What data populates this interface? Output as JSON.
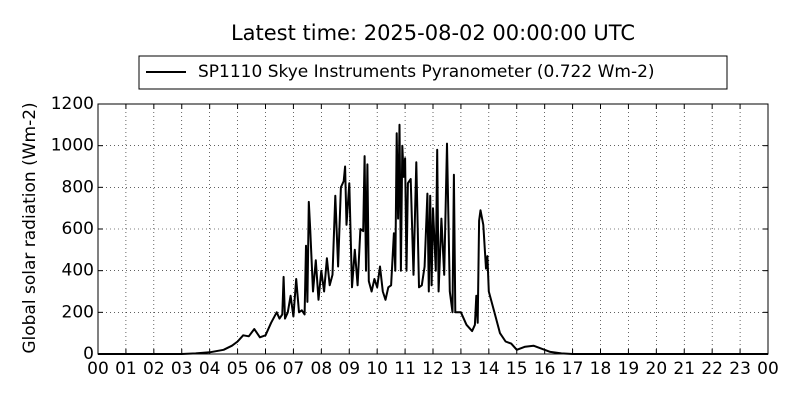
{
  "chart_data": {
    "type": "line",
    "title": "Latest time: 2025-08-02 00:00:00 UTC",
    "ylabel": "Global solar radiation (Wm-2)",
    "x": [
      0,
      3,
      3.5,
      4,
      4.5,
      4.8,
      5,
      5.2,
      5.4,
      5.6,
      5.8,
      6,
      6.2,
      6.4,
      6.5,
      6.6,
      6.65,
      6.7,
      6.8,
      6.9,
      7.0,
      7.1,
      7.2,
      7.3,
      7.4,
      7.45,
      7.5,
      7.55,
      7.6,
      7.7,
      7.8,
      7.9,
      8.0,
      8.1,
      8.2,
      8.3,
      8.4,
      8.5,
      8.6,
      8.7,
      8.8,
      8.85,
      8.9,
      9.0,
      9.1,
      9.2,
      9.3,
      9.4,
      9.5,
      9.55,
      9.6,
      9.65,
      9.7,
      9.8,
      9.9,
      10.0,
      10.1,
      10.2,
      10.3,
      10.4,
      10.5,
      10.6,
      10.65,
      10.7,
      10.75,
      10.8,
      10.85,
      10.9,
      10.95,
      11.0,
      11.05,
      11.1,
      11.2,
      11.3,
      11.4,
      11.5,
      11.6,
      11.7,
      11.8,
      11.85,
      11.9,
      11.95,
      12.0,
      12.1,
      12.15,
      12.2,
      12.3,
      12.4,
      12.5,
      12.6,
      12.7,
      12.75,
      12.8,
      13.0,
      13.2,
      13.4,
      13.5,
      13.55,
      13.6,
      13.65,
      13.7,
      13.8,
      13.9,
      13.95,
      14.0,
      14.2,
      14.4,
      14.6,
      14.8,
      15.0,
      15.3,
      15.6,
      15.9,
      16.2,
      16.6,
      17,
      24
    ],
    "series": [
      {
        "name": "SP1110 Skye Instruments Pyranometer (0.722 Wm-2)",
        "color": "#000000",
        "values": [
          0,
          0,
          3,
          8,
          20,
          40,
          60,
          90,
          85,
          120,
          80,
          90,
          150,
          200,
          170,
          190,
          370,
          170,
          200,
          280,
          180,
          360,
          200,
          210,
          190,
          520,
          250,
          730,
          600,
          300,
          450,
          260,
          400,
          300,
          460,
          330,
          380,
          760,
          420,
          800,
          830,
          900,
          620,
          820,
          320,
          500,
          330,
          600,
          590,
          950,
          400,
          910,
          350,
          300,
          360,
          320,
          420,
          300,
          260,
          320,
          330,
          580,
          400,
          1060,
          650,
          1100,
          400,
          1000,
          850,
          940,
          400,
          820,
          840,
          380,
          920,
          320,
          330,
          420,
          770,
          300,
          760,
          330,
          700,
          400,
          980,
          300,
          650,
          380,
          1010,
          300,
          200,
          860,
          200,
          200,
          140,
          110,
          140,
          280,
          150,
          640,
          690,
          620,
          410,
          470,
          300,
          200,
          100,
          60,
          50,
          20,
          35,
          40,
          25,
          10,
          3,
          0,
          0
        ]
      }
    ],
    "xlim": [
      0,
      24
    ],
    "ylim": [
      0,
      1200
    ],
    "xticks": [
      {
        "value": 0,
        "label": "00"
      },
      {
        "value": 1,
        "label": "01"
      },
      {
        "value": 2,
        "label": "02"
      },
      {
        "value": 3,
        "label": "03"
      },
      {
        "value": 4,
        "label": "04"
      },
      {
        "value": 5,
        "label": "05"
      },
      {
        "value": 6,
        "label": "06"
      },
      {
        "value": 7,
        "label": "07"
      },
      {
        "value": 8,
        "label": "08"
      },
      {
        "value": 9,
        "label": "09"
      },
      {
        "value": 10,
        "label": "10"
      },
      {
        "value": 11,
        "label": "11"
      },
      {
        "value": 12,
        "label": "12"
      },
      {
        "value": 13,
        "label": "13"
      },
      {
        "value": 14,
        "label": "14"
      },
      {
        "value": 15,
        "label": "15"
      },
      {
        "value": 16,
        "label": "16"
      },
      {
        "value": 17,
        "label": "17"
      },
      {
        "value": 18,
        "label": "18"
      },
      {
        "value": 19,
        "label": "19"
      },
      {
        "value": 20,
        "label": "20"
      },
      {
        "value": 21,
        "label": "21"
      },
      {
        "value": 22,
        "label": "22"
      },
      {
        "value": 23,
        "label": "23"
      },
      {
        "value": 24,
        "label": "00"
      }
    ],
    "yticks": [
      0,
      200,
      400,
      600,
      800,
      1000,
      1200
    ],
    "grid": true
  }
}
